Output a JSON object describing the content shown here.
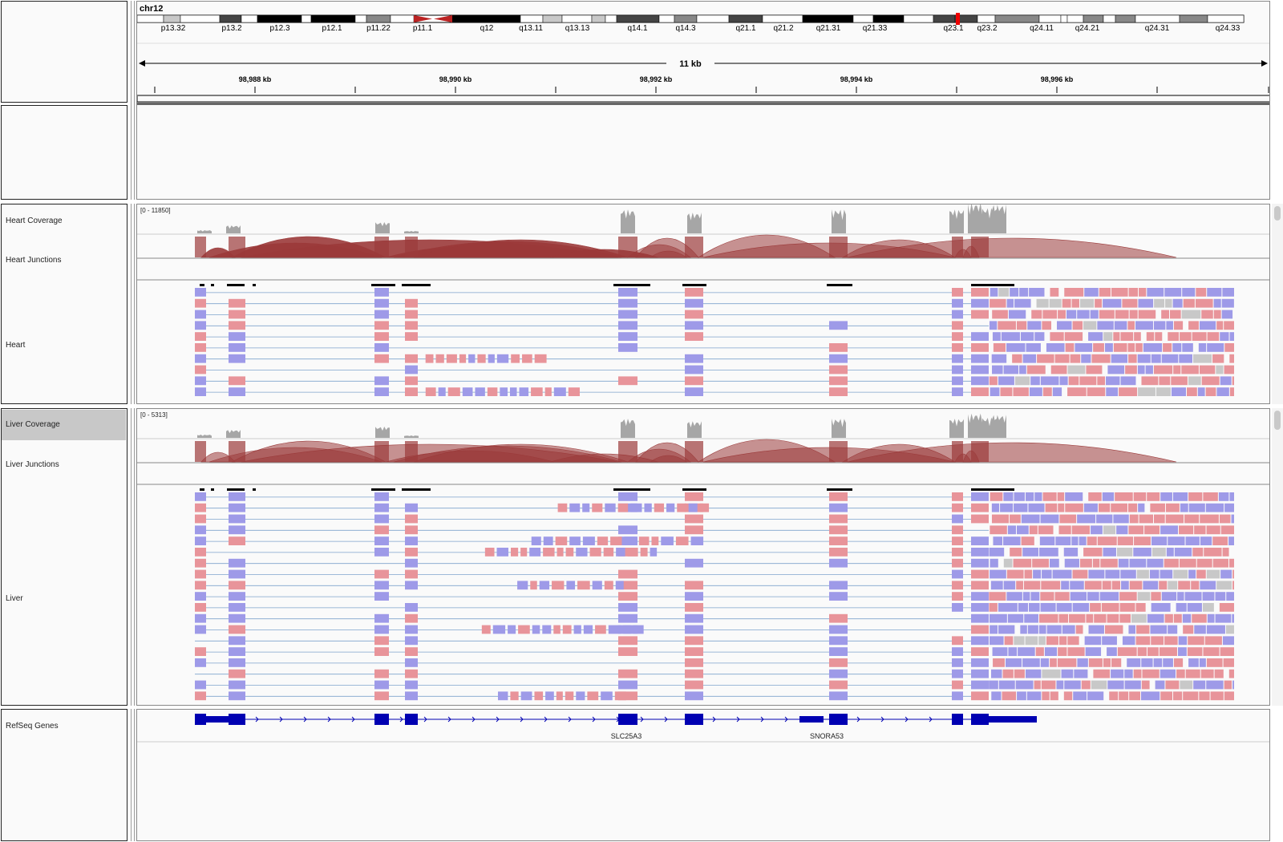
{
  "locus": {
    "chromosome": "chr12",
    "bands": [
      "p13.32",
      "p13.2",
      "p12.3",
      "p12.1",
      "p11.22",
      "p11.1",
      "q12",
      "q13.11",
      "q13.13",
      "q14.1",
      "q14.3",
      "q21.1",
      "q21.2",
      "q21.31",
      "q21.33",
      "q23.1",
      "q23.2",
      "q24.11",
      "q24.21",
      "q24.31",
      "q24.33"
    ],
    "span_label": "11 kb",
    "ruler_ticks": [
      "98,988 kb",
      "98,990 kb",
      "98,992 kb",
      "98,994 kb",
      "98,996 kb"
    ]
  },
  "tracks": {
    "heart": {
      "coverage_name": "Heart Coverage",
      "coverage_range": "[0 - 11850]",
      "junctions_name": "Heart Junctions",
      "alignments_name": "Heart"
    },
    "liver": {
      "coverage_name": "Liver Coverage",
      "coverage_range": "[0 - 5313]",
      "junctions_name": "Liver Junctions",
      "alignments_name": "Liver"
    },
    "refseq": {
      "name": "RefSeq Genes",
      "genes": [
        "SLC25A3",
        "SNORA53"
      ]
    }
  },
  "colors": {
    "forward_read": "#e8949a",
    "reverse_read": "#9e9ae8",
    "coverage": "#a6a6a6",
    "junction": "#9b3a3a",
    "gene": "#0000b2"
  }
}
